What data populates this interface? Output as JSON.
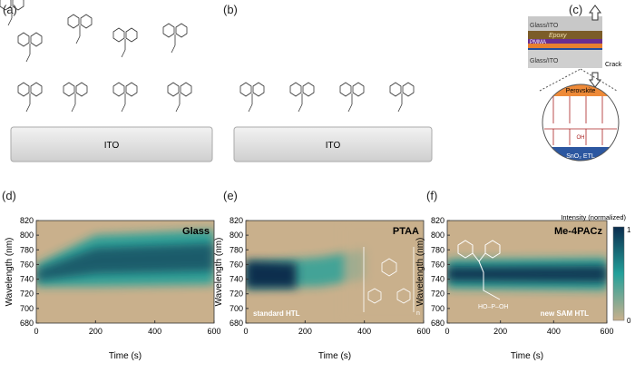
{
  "panels": {
    "a": {
      "label": "(a)",
      "substrate": "ITO"
    },
    "b": {
      "label": "(b)",
      "substrate": "ITO"
    },
    "c": {
      "label": "(c)",
      "layers": [
        "Glass/ITO",
        "Epoxy",
        "PMMA",
        "Glass/ITO"
      ],
      "crack": "Crack",
      "zoom_top": "Perovskite",
      "zoom_bottom": "SnO₂ ETL",
      "oh": "OH"
    },
    "d": {
      "label": "(d)"
    },
    "e": {
      "label": "(e)"
    },
    "f": {
      "label": "(f)"
    }
  },
  "colors": {
    "low": "#c9b08c",
    "mid": "#23a09a",
    "high": "#0b2d4e"
  },
  "colorbar": {
    "title": "Intensity (normalized)",
    "max": "1",
    "min": "0"
  },
  "chart_data": [
    {
      "type": "heatmap",
      "title": "Glass",
      "xlabel": "Time (s)",
      "ylabel": "Wavelength (nm)",
      "xlim": [
        0,
        600
      ],
      "ylim": [
        680,
        820
      ],
      "xticks": [
        "0",
        "200",
        "400",
        "600"
      ],
      "yticks": [
        "680",
        "700",
        "720",
        "740",
        "760",
        "780",
        "800",
        "820"
      ],
      "peak_nm": [
        {
          "t": 0,
          "center": 745,
          "width": 30
        },
        {
          "t": 200,
          "center": 765,
          "width": 70
        },
        {
          "t": 600,
          "center": 770,
          "width": 75
        }
      ],
      "annotation": ""
    },
    {
      "type": "heatmap",
      "title": "PTAA",
      "xlabel": "Time (s)",
      "ylabel": "Wavelength (nm)",
      "xlim": [
        0,
        600
      ],
      "ylim": [
        680,
        820
      ],
      "xticks": [
        "0",
        "200",
        "400",
        "600"
      ],
      "yticks": [
        "680",
        "700",
        "720",
        "740",
        "760",
        "780",
        "800",
        "820"
      ],
      "peak_nm": [
        {
          "t": 0,
          "center": 745,
          "width": 35
        },
        {
          "t": 250,
          "center": 750,
          "width": 40
        },
        {
          "t": 400,
          "center": 760,
          "width": 40
        }
      ],
      "annotation": "standard HTL",
      "subscript": "n"
    },
    {
      "type": "heatmap",
      "title": "Me-4PACz",
      "xlabel": "Time (s)",
      "ylabel": "Wavelength (nm)",
      "xlim": [
        0,
        600
      ],
      "ylim": [
        680,
        820
      ],
      "xticks": [
        "0",
        "200",
        "400",
        "600"
      ],
      "yticks": [
        "680",
        "700",
        "720",
        "740",
        "760",
        "780",
        "800",
        "820"
      ],
      "peak_nm": [
        {
          "t": 0,
          "center": 747,
          "width": 40
        },
        {
          "t": 600,
          "center": 747,
          "width": 45
        }
      ],
      "annotation": "new SAM HTL",
      "molecule_label": "HO–P–OH"
    }
  ]
}
